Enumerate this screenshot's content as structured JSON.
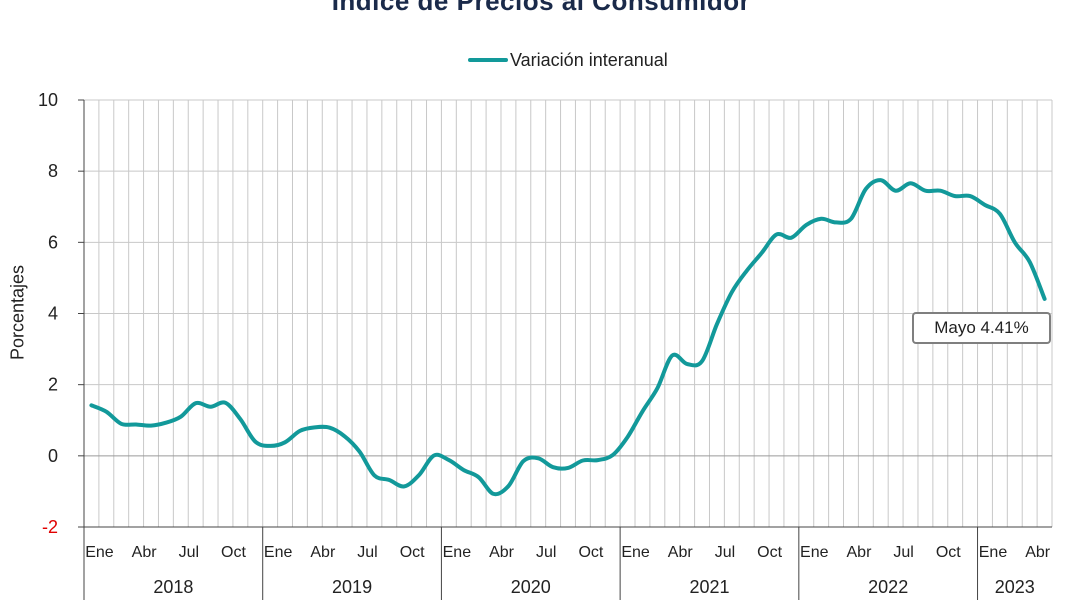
{
  "title": "Índice de Precios al Consumidor",
  "ylabel": "Porcentajes",
  "annotation": "Mayo 4.41%",
  "colors": {
    "line": "#12999a",
    "grid": "#c8c8c8",
    "negative_tick": "#e00000"
  },
  "chart_data": {
    "type": "line",
    "title": "Índice de Precios al Consumidor",
    "xlabel": "",
    "ylabel": "Porcentajes",
    "ylim": [
      -2,
      10
    ],
    "yticks": [
      "-2",
      "0",
      "2",
      "4",
      "6",
      "8",
      "10"
    ],
    "grid": true,
    "legend_position": "top-center",
    "month_ticks": [
      "Ene",
      "Abr",
      "Jul",
      "Oct"
    ],
    "years": [
      "2018",
      "2019",
      "2020",
      "2021",
      "2022",
      "2023"
    ],
    "x": [
      "2018-01",
      "2018-02",
      "2018-03",
      "2018-04",
      "2018-05",
      "2018-06",
      "2018-07",
      "2018-08",
      "2018-09",
      "2018-10",
      "2018-11",
      "2018-12",
      "2019-01",
      "2019-02",
      "2019-03",
      "2019-04",
      "2019-05",
      "2019-06",
      "2019-07",
      "2019-08",
      "2019-09",
      "2019-10",
      "2019-11",
      "2019-12",
      "2020-01",
      "2020-02",
      "2020-03",
      "2020-04",
      "2020-05",
      "2020-06",
      "2020-07",
      "2020-08",
      "2020-09",
      "2020-10",
      "2020-11",
      "2020-12",
      "2021-01",
      "2021-02",
      "2021-03",
      "2021-04",
      "2021-05",
      "2021-06",
      "2021-07",
      "2021-08",
      "2021-09",
      "2021-10",
      "2021-11",
      "2021-12",
      "2022-01",
      "2022-02",
      "2022-03",
      "2022-04",
      "2022-05",
      "2022-06",
      "2022-07",
      "2022-08",
      "2022-09",
      "2022-10",
      "2022-11",
      "2022-12",
      "2023-01",
      "2023-02",
      "2023-03",
      "2023-04",
      "2023-05"
    ],
    "series": [
      {
        "name": "Variación interanual",
        "values": [
          1.42,
          1.24,
          0.9,
          0.88,
          0.85,
          0.93,
          1.1,
          1.48,
          1.38,
          1.49,
          1.03,
          0.4,
          0.28,
          0.38,
          0.7,
          0.8,
          0.79,
          0.55,
          0.12,
          -0.55,
          -0.68,
          -0.86,
          -0.54,
          0.01,
          -0.12,
          -0.4,
          -0.6,
          -1.07,
          -0.85,
          -0.15,
          -0.07,
          -0.32,
          -0.34,
          -0.13,
          -0.12,
          0.02,
          0.53,
          1.25,
          1.9,
          2.82,
          2.58,
          2.66,
          3.7,
          4.6,
          5.2,
          5.7,
          6.22,
          6.13,
          6.49,
          6.66,
          6.56,
          6.66,
          7.5,
          7.75,
          7.45,
          7.66,
          7.45,
          7.45,
          7.3,
          7.3,
          7.05,
          6.8,
          6.0,
          5.45,
          4.41
        ]
      }
    ]
  }
}
